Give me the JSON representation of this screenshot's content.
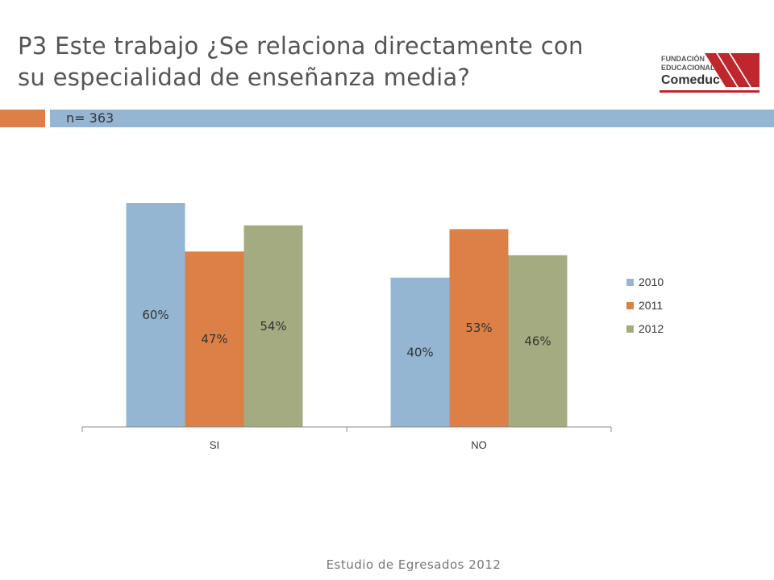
{
  "header": {
    "title_line1": "P3 Este trabajo ¿Se relaciona directamente con",
    "title_line2": "su especialidad de enseñanza media?",
    "sample_size": "n= 363"
  },
  "logo": {
    "line1": "FUNDACIÓN",
    "line2": "EDUCACIONAL",
    "line3": "Comeduc",
    "color": "#c0272d"
  },
  "footer": {
    "text": "Estudio de Egresados 2012"
  },
  "colors": {
    "orange_tab": "#dd8047",
    "blue_bar": "#94b6d2"
  },
  "chart_data": {
    "type": "bar",
    "categories": [
      "SI",
      "NO"
    ],
    "series": [
      {
        "name": "2010",
        "values": [
          60,
          40
        ],
        "labels": [
          "60%",
          "40%"
        ],
        "color": "#94b6d2"
      },
      {
        "name": "2011",
        "values": [
          47,
          53
        ],
        "labels": [
          "47%",
          "53%"
        ],
        "color": "#dd8047"
      },
      {
        "name": "2012",
        "values": [
          54,
          46
        ],
        "labels": [
          "54%",
          "46%"
        ],
        "color": "#a5ab81"
      }
    ],
    "ylim": [
      0,
      60
    ],
    "grid": false,
    "legend_position": "right"
  }
}
